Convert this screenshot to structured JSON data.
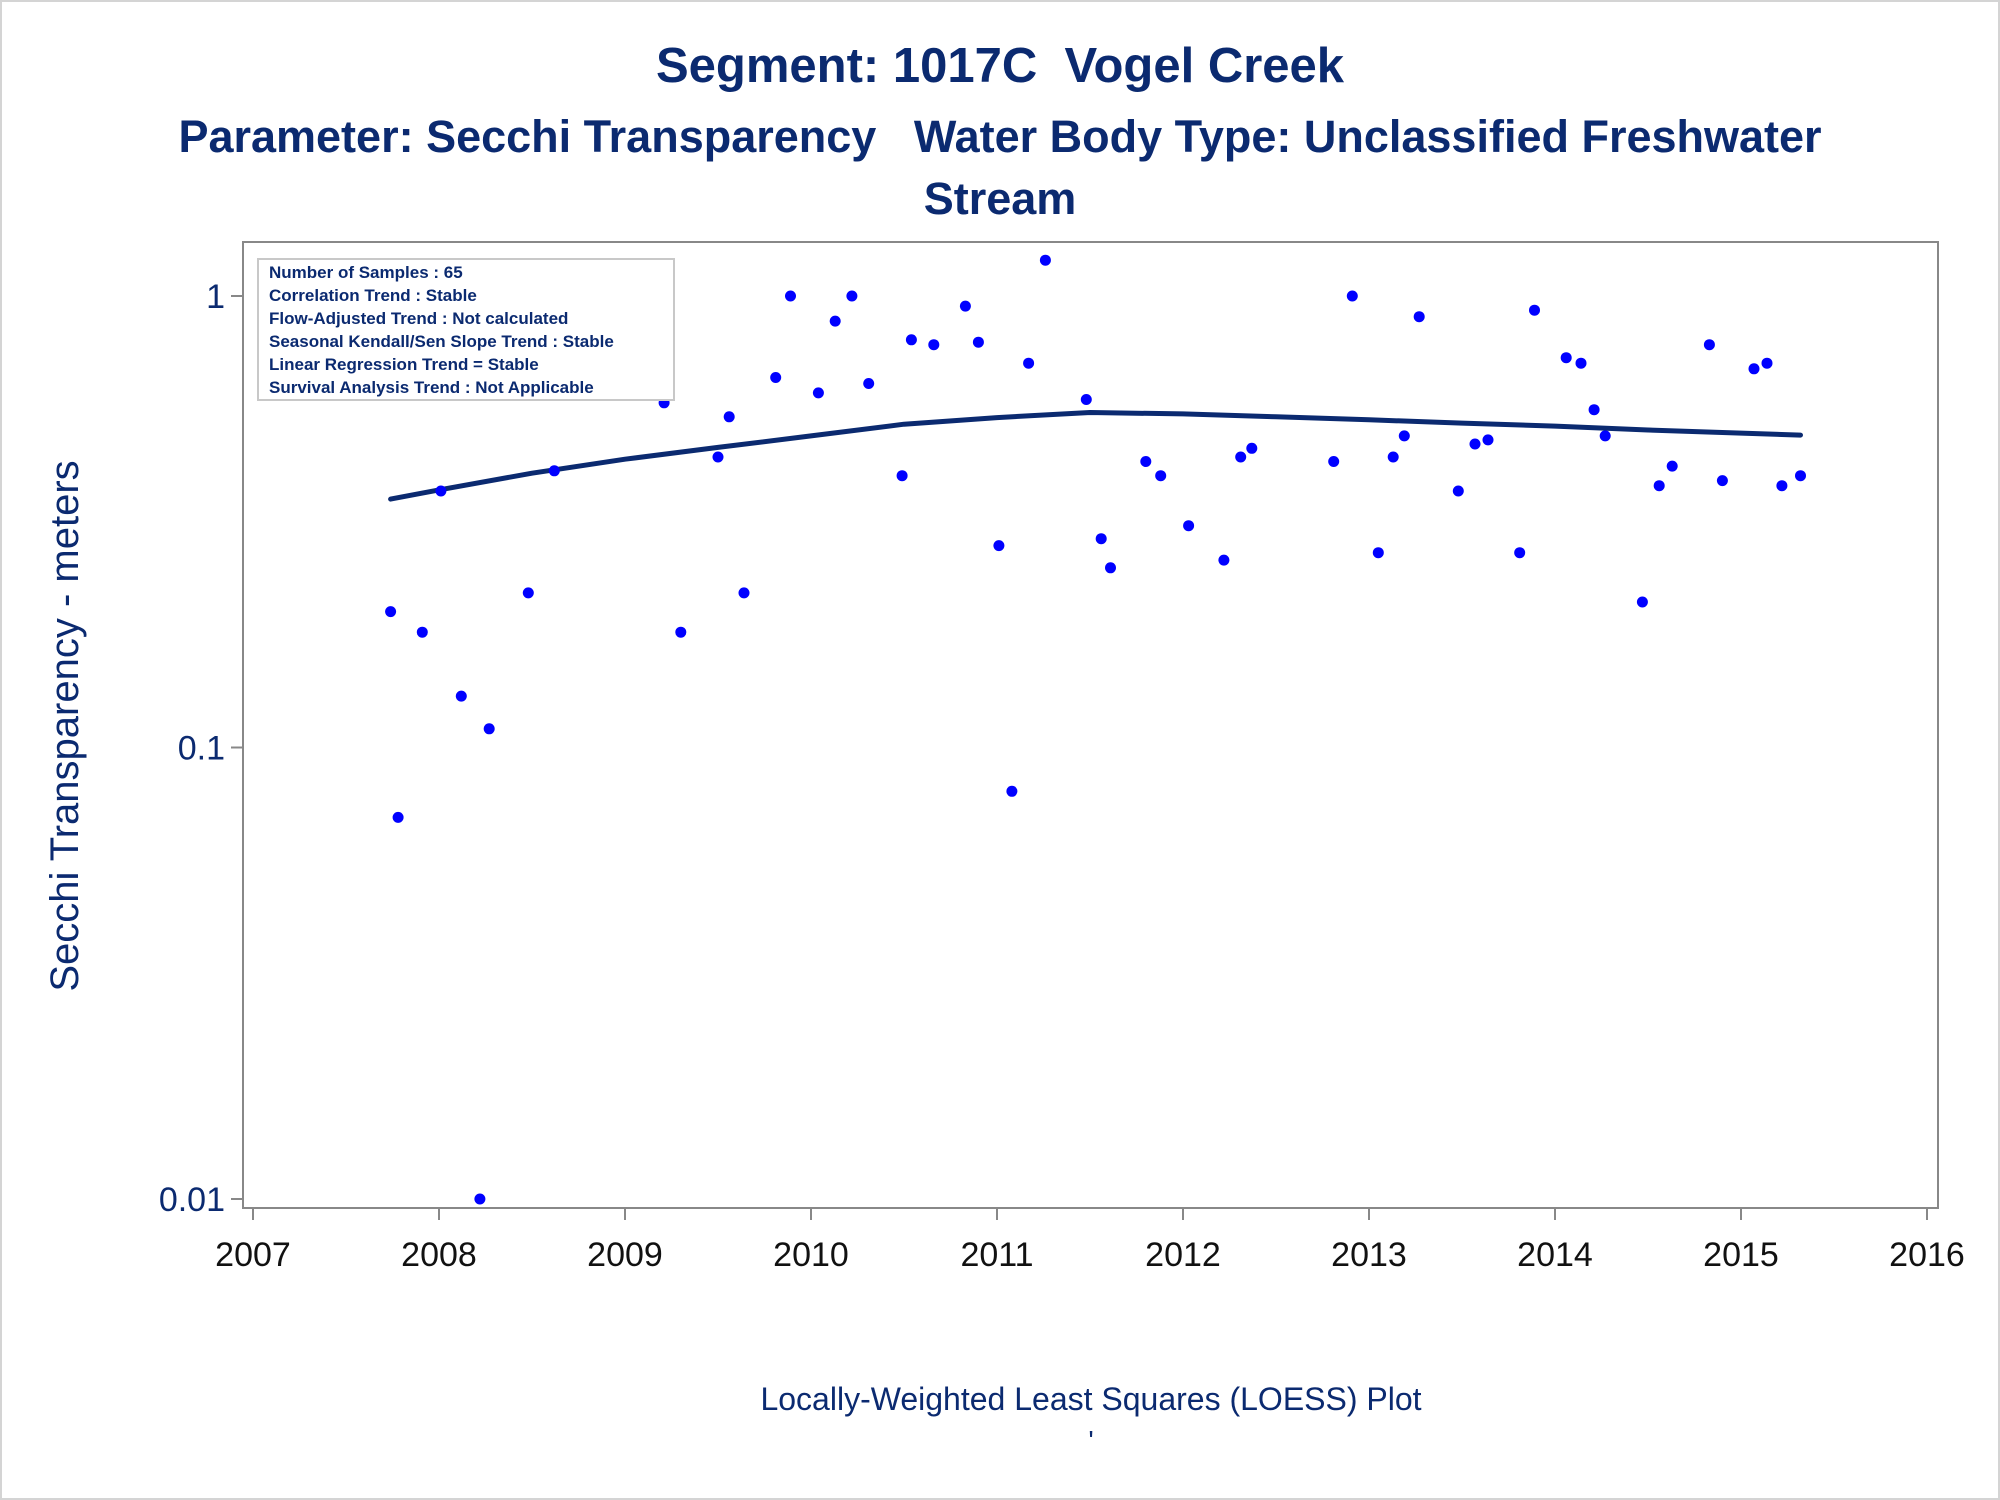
{
  "title": "Segment: 1017C  Vogel Creek",
  "subtitle": "Parameter: Secchi Transparency   Water Body Type: Unclassified Freshwater Stream",
  "footer": {
    "main": "Locally-Weighted Least Squares (LOESS) Plot",
    "mark": "'"
  },
  "colors": {
    "text": "#0b2a70",
    "points": "#0000ff",
    "line": "#0b2a70",
    "axis": "#888888",
    "legend_border": "#c8c8c8"
  },
  "chart_data": {
    "type": "scatter",
    "title": "Segment: 1017C  Vogel Creek",
    "subtitle": "Parameter: Secchi Transparency   Water Body Type: Unclassified Freshwater Stream",
    "xlabel": "",
    "ylabel": "Secchi Transparency - meters",
    "x_scale": "time",
    "y_scale": "log",
    "xlim": [
      2007,
      2016
    ],
    "ylim": [
      0.01,
      1.25
    ],
    "x_ticks": [
      "2007",
      "2008",
      "2009",
      "2010",
      "2011",
      "2012",
      "2013",
      "2014",
      "2015",
      "2016"
    ],
    "y_ticks": [
      "1",
      "0.1",
      "0.01"
    ],
    "grid": false,
    "legend_placement": "top-left",
    "inset_text": [
      "Number of Samples : 65",
      "Correlation Trend : Stable",
      "Flow-Adjusted Trend : Not calculated",
      "Seasonal Kendall/Sen Slope Trend : Stable",
      "Linear Regression Trend = Stable",
      "Survival Analysis Trend : Not Applicable"
    ],
    "series": [
      {
        "type": "scatter",
        "points": [
          [
            2007.74,
            0.2
          ],
          [
            2007.78,
            0.07
          ],
          [
            2007.91,
            0.18
          ],
          [
            2008.01,
            0.37
          ],
          [
            2008.12,
            0.13
          ],
          [
            2008.22,
            0.01
          ],
          [
            2008.27,
            0.11
          ],
          [
            2008.48,
            0.22
          ],
          [
            2008.62,
            0.41
          ],
          [
            2008.76,
            0.9
          ],
          [
            2008.92,
            0.85
          ],
          [
            2009.08,
            0.76
          ],
          [
            2009.21,
            0.58
          ],
          [
            2009.3,
            0.18
          ],
          [
            2009.5,
            0.44
          ],
          [
            2009.56,
            0.54
          ],
          [
            2009.64,
            0.22
          ],
          [
            2009.81,
            0.66
          ],
          [
            2009.89,
            1.0
          ],
          [
            2010.04,
            0.61
          ],
          [
            2010.13,
            0.88
          ],
          [
            2010.22,
            1.0
          ],
          [
            2010.31,
            0.64
          ],
          [
            2010.49,
            0.4
          ],
          [
            2010.54,
            0.8
          ],
          [
            2010.66,
            0.78
          ],
          [
            2010.83,
            0.95
          ],
          [
            2010.9,
            0.79
          ],
          [
            2011.01,
            0.28
          ],
          [
            2011.08,
            0.08
          ],
          [
            2011.17,
            0.71
          ],
          [
            2011.26,
            1.2
          ],
          [
            2011.48,
            0.59
          ],
          [
            2011.56,
            0.29
          ],
          [
            2011.61,
            0.25
          ],
          [
            2011.8,
            0.43
          ],
          [
            2011.88,
            0.4
          ],
          [
            2012.03,
            0.31
          ],
          [
            2012.22,
            0.26
          ],
          [
            2012.31,
            0.44
          ],
          [
            2012.37,
            0.46
          ],
          [
            2012.81,
            0.43
          ],
          [
            2012.91,
            1.0
          ],
          [
            2013.05,
            0.27
          ],
          [
            2013.13,
            0.44
          ],
          [
            2013.19,
            0.49
          ],
          [
            2013.27,
            0.9
          ],
          [
            2013.48,
            0.37
          ],
          [
            2013.57,
            0.47
          ],
          [
            2013.64,
            0.48
          ],
          [
            2013.81,
            0.27
          ],
          [
            2013.89,
            0.93
          ],
          [
            2014.06,
            0.73
          ],
          [
            2014.14,
            0.71
          ],
          [
            2014.21,
            0.56
          ],
          [
            2014.27,
            0.49
          ],
          [
            2014.47,
            0.21
          ],
          [
            2014.56,
            0.38
          ],
          [
            2014.63,
            0.42
          ],
          [
            2014.83,
            0.78
          ],
          [
            2014.9,
            0.39
          ],
          [
            2015.07,
            0.69
          ],
          [
            2015.14,
            0.71
          ],
          [
            2015.22,
            0.38
          ],
          [
            2015.32,
            0.4
          ]
        ]
      },
      {
        "type": "line",
        "points": [
          [
            2007.74,
            0.355
          ],
          [
            2008.0,
            0.372
          ],
          [
            2008.5,
            0.405
          ],
          [
            2009.0,
            0.435
          ],
          [
            2009.5,
            0.462
          ],
          [
            2010.0,
            0.49
          ],
          [
            2010.5,
            0.52
          ],
          [
            2011.0,
            0.538
          ],
          [
            2011.5,
            0.552
          ],
          [
            2012.0,
            0.548
          ],
          [
            2012.5,
            0.54
          ],
          [
            2013.0,
            0.532
          ],
          [
            2013.5,
            0.523
          ],
          [
            2014.0,
            0.515
          ],
          [
            2014.5,
            0.505
          ],
          [
            2015.0,
            0.497
          ],
          [
            2015.32,
            0.492
          ]
        ]
      }
    ]
  }
}
